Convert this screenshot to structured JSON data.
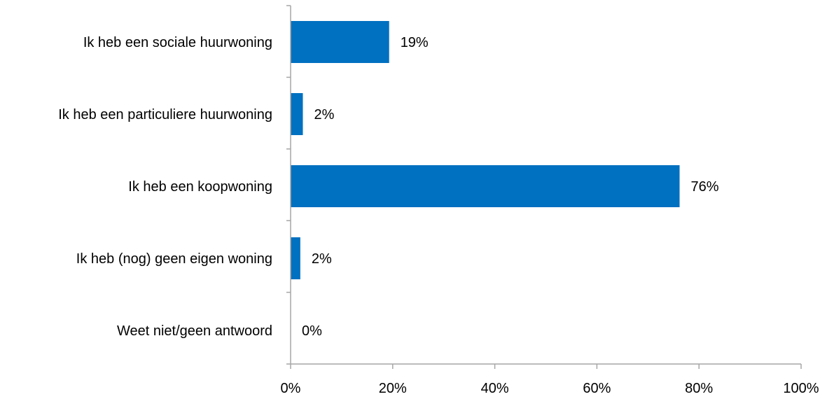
{
  "chart_data": {
    "type": "bar",
    "orientation": "horizontal",
    "categories": [
      "Ik heb een sociale huurwoning",
      "Ik heb een particuliere huurwoning",
      "Ik heb een koopwoning",
      "Ik heb (nog) geen eigen woning",
      "Weet niet/geen antwoord"
    ],
    "values": [
      19.3,
      2.4,
      76.2,
      1.9,
      0
    ],
    "value_labels": [
      "19%",
      "2%",
      "76%",
      "2%",
      "0%"
    ],
    "x_ticks": [
      "0%",
      "20%",
      "40%",
      "60%",
      "80%",
      "100%"
    ],
    "xlim": [
      0,
      100
    ],
    "title": "",
    "xlabel": "",
    "ylabel": "",
    "grid": false,
    "legend": "none",
    "bar_color": "#0070C0",
    "axis_color": "#A6A6A6"
  }
}
